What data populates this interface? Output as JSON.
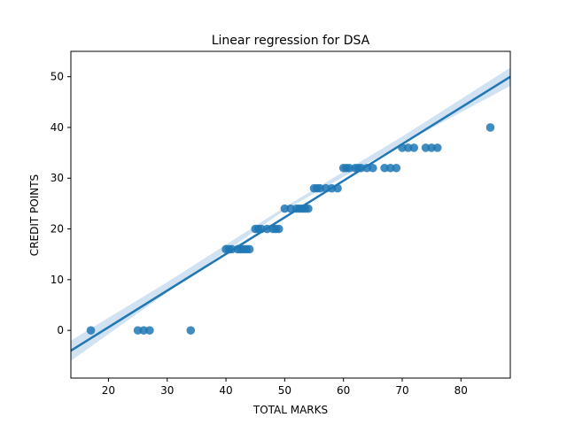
{
  "chart_data": {
    "type": "scatter",
    "title": "Linear regression for DSA",
    "xlabel": "TOTAL MARKS",
    "ylabel": "CREDIT POINTS",
    "xlim": [
      13.6,
      88.4
    ],
    "ylim": [
      -9.4,
      55
    ],
    "xticks": [
      20,
      30,
      40,
      50,
      60,
      70,
      80
    ],
    "yticks": [
      0,
      10,
      20,
      30,
      40,
      50
    ],
    "grid": false,
    "legend": "none",
    "colors": {
      "points": "#1f77b4",
      "line": "#1f77b4",
      "band": "#c6dbef",
      "axes": "#000000"
    },
    "points": [
      [
        17,
        0
      ],
      [
        25,
        0
      ],
      [
        26,
        0
      ],
      [
        27,
        0
      ],
      [
        34,
        0
      ],
      [
        40,
        16
      ],
      [
        40.5,
        16
      ],
      [
        41,
        16
      ],
      [
        42,
        16
      ],
      [
        42.5,
        16
      ],
      [
        43,
        16
      ],
      [
        43.5,
        16
      ],
      [
        44,
        16
      ],
      [
        45,
        20
      ],
      [
        45.5,
        20
      ],
      [
        46,
        20
      ],
      [
        47,
        20
      ],
      [
        48,
        20
      ],
      [
        48.5,
        20
      ],
      [
        49,
        20
      ],
      [
        50,
        24
      ],
      [
        51,
        24
      ],
      [
        52,
        24
      ],
      [
        52.5,
        24
      ],
      [
        53,
        24
      ],
      [
        53.5,
        24
      ],
      [
        54,
        24
      ],
      [
        55,
        28
      ],
      [
        55.5,
        28
      ],
      [
        56,
        28
      ],
      [
        57,
        28
      ],
      [
        58,
        28
      ],
      [
        59,
        28
      ],
      [
        60,
        32
      ],
      [
        60.5,
        32
      ],
      [
        61,
        32
      ],
      [
        62,
        32
      ],
      [
        62.5,
        32
      ],
      [
        63,
        32
      ],
      [
        64,
        32
      ],
      [
        65,
        32
      ],
      [
        67,
        32
      ],
      [
        68,
        32
      ],
      [
        69,
        32
      ],
      [
        70,
        36
      ],
      [
        71,
        36
      ],
      [
        72,
        36
      ],
      [
        74,
        36
      ],
      [
        75,
        36
      ],
      [
        76,
        36
      ],
      [
        85,
        40
      ]
    ],
    "regression": {
      "line": [
        [
          13.6,
          -4.0
        ],
        [
          88.4,
          50.0
        ]
      ],
      "band_upper": [
        [
          13.6,
          -2.0
        ],
        [
          30,
          9.5
        ],
        [
          50,
          24.3
        ],
        [
          70,
          38.2
        ],
        [
          88.4,
          51.8
        ]
      ],
      "band_lower": [
        [
          13.6,
          -6.0
        ],
        [
          30,
          7.5
        ],
        [
          50,
          23.7
        ],
        [
          70,
          36.8
        ],
        [
          88.4,
          48.2
        ]
      ]
    }
  }
}
